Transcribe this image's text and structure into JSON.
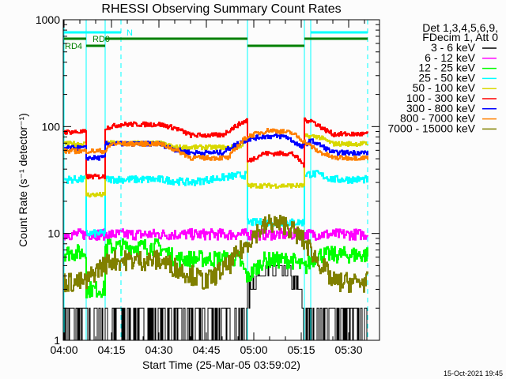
{
  "chart_data": {
    "type": "line",
    "title": "RHESSI Observing Summary Count Rates",
    "xlabel": "Start Time (25-Mar-05 03:59:02)",
    "ylabel": "Count Rate (s⁻¹ detector⁻¹)",
    "y_scale": "log",
    "ylim": [
      1,
      1000
    ],
    "xlim": [
      "03:59:45",
      "05:39:45"
    ],
    "x_ticks": [
      "04:00",
      "04:15",
      "04:30",
      "04:45",
      "05:00",
      "05:15",
      "05:30"
    ],
    "y_ticks": [
      "1",
      "10",
      "100",
      "1000"
    ],
    "legend_header": [
      "Det 1,3,4,5,6,9,",
      "FDecim 1, Att 0"
    ],
    "legend_position": "right",
    "timestamp": "15-Oct-2021 19:45",
    "series": [
      {
        "name": "3 - 6 keV",
        "color": "#000000",
        "points": [
          [
            "04:00",
            1.5
          ],
          [
            "04:07",
            1.5
          ],
          [
            "04:13",
            1.5
          ],
          [
            "04:30",
            1.5
          ],
          [
            "04:45",
            1.5
          ],
          [
            "04:57",
            1.5
          ],
          [
            "04:58",
            3
          ],
          [
            "05:02",
            4.5
          ],
          [
            "05:10",
            4.5
          ],
          [
            "05:14",
            3
          ],
          [
            "05:16",
            1.5
          ],
          [
            "05:36",
            1.5
          ]
        ]
      },
      {
        "name": "6 - 12 keV",
        "color": "#ff00ff",
        "points": [
          [
            "04:00",
            9.8
          ],
          [
            "04:30",
            9.8
          ],
          [
            "05:00",
            9.8
          ],
          [
            "05:36",
            9.8
          ]
        ]
      },
      {
        "name": "12 - 25 keV",
        "color": "#00ff00",
        "points": [
          [
            "04:00",
            6.6
          ],
          [
            "04:07",
            6.6
          ],
          [
            "04:07",
            3
          ],
          [
            "04:13",
            3
          ],
          [
            "04:13",
            7.5
          ],
          [
            "04:30",
            7.5
          ],
          [
            "04:35",
            5.8
          ],
          [
            "04:55",
            5.8
          ],
          [
            "04:58",
            3.8
          ],
          [
            "05:03",
            5.6
          ],
          [
            "05:12",
            5.6
          ],
          [
            "05:16",
            4.7
          ],
          [
            "05:20",
            6.3
          ],
          [
            "05:36",
            6.3
          ]
        ]
      },
      {
        "name": "25 - 50 keV",
        "color": "#00ffff",
        "points": [
          [
            "04:00",
            32
          ],
          [
            "04:07",
            32
          ],
          [
            "04:07",
            10
          ],
          [
            "04:13",
            10
          ],
          [
            "04:13",
            32
          ],
          [
            "04:30",
            32
          ],
          [
            "04:40",
            30
          ],
          [
            "04:55",
            35
          ],
          [
            "04:58",
            35
          ],
          [
            "04:58",
            12.7
          ],
          [
            "05:16",
            12.7
          ],
          [
            "05:16",
            36
          ],
          [
            "05:20",
            36
          ],
          [
            "05:25",
            32
          ],
          [
            "05:36",
            32
          ]
        ]
      },
      {
        "name": "50 - 100 keV",
        "color": "#d8d800",
        "points": [
          [
            "04:00",
            69
          ],
          [
            "04:07",
            69
          ],
          [
            "04:07",
            23
          ],
          [
            "04:13",
            23
          ],
          [
            "04:13",
            70
          ],
          [
            "04:30",
            70
          ],
          [
            "04:35",
            64
          ],
          [
            "04:55",
            64
          ],
          [
            "04:58",
            74
          ],
          [
            "04:58",
            28
          ],
          [
            "05:16",
            28
          ],
          [
            "05:16",
            81
          ],
          [
            "05:20",
            81
          ],
          [
            "05:25",
            69
          ],
          [
            "05:36",
            69
          ]
        ]
      },
      {
        "name": "100 - 300 keV",
        "color": "#ff0000",
        "points": [
          [
            "04:00",
            89
          ],
          [
            "04:07",
            89
          ],
          [
            "04:07",
            34
          ],
          [
            "04:13",
            34
          ],
          [
            "04:13",
            97
          ],
          [
            "04:18",
            105
          ],
          [
            "04:30",
            105
          ],
          [
            "04:35",
            97
          ],
          [
            "04:40",
            83
          ],
          [
            "04:50",
            83
          ],
          [
            "04:53",
            96
          ],
          [
            "04:58",
            116
          ],
          [
            "04:58",
            47
          ],
          [
            "05:03",
            56
          ],
          [
            "05:12",
            56
          ],
          [
            "05:16",
            43
          ],
          [
            "05:16",
            114
          ],
          [
            "05:18",
            114
          ],
          [
            "05:22",
            95
          ],
          [
            "05:25",
            85
          ],
          [
            "05:36",
            85
          ]
        ]
      },
      {
        "name": "300 - 800 keV",
        "color": "#0000ff",
        "points": [
          [
            "04:00",
            63
          ],
          [
            "04:07",
            63
          ],
          [
            "04:07",
            51
          ],
          [
            "04:13",
            51
          ],
          [
            "04:13",
            69
          ],
          [
            "04:30",
            69
          ],
          [
            "04:35",
            61
          ],
          [
            "04:40",
            57
          ],
          [
            "04:50",
            57
          ],
          [
            "04:55",
            70
          ],
          [
            "04:58",
            76
          ],
          [
            "05:03",
            81
          ],
          [
            "05:10",
            81
          ],
          [
            "05:15",
            64
          ],
          [
            "05:18",
            74
          ],
          [
            "05:25",
            57
          ],
          [
            "05:36",
            57
          ]
        ]
      },
      {
        "name": "800 - 7000 keV",
        "color": "#ff8000",
        "points": [
          [
            "04:00",
            59
          ],
          [
            "04:13",
            59
          ],
          [
            "04:15",
            69
          ],
          [
            "04:30",
            69
          ],
          [
            "04:35",
            61
          ],
          [
            "04:40",
            51
          ],
          [
            "04:52",
            51
          ],
          [
            "04:55",
            67
          ],
          [
            "04:58",
            81
          ],
          [
            "05:05",
            93
          ],
          [
            "05:12",
            87
          ],
          [
            "05:16",
            72
          ],
          [
            "05:20",
            59
          ],
          [
            "05:25",
            51
          ],
          [
            "05:36",
            51
          ]
        ]
      },
      {
        "name": "7000 - 15000 keV",
        "color": "#808000",
        "points": [
          [
            "04:00",
            3.5
          ],
          [
            "04:07",
            3.5
          ],
          [
            "04:10",
            4.5
          ],
          [
            "04:15",
            5.6
          ],
          [
            "04:30",
            5.6
          ],
          [
            "04:37",
            4.5
          ],
          [
            "04:45",
            3.5
          ],
          [
            "04:52",
            5
          ],
          [
            "04:57",
            7.5
          ],
          [
            "05:00",
            9.8
          ],
          [
            "05:05",
            12.5
          ],
          [
            "05:10",
            12
          ],
          [
            "05:15",
            8.9
          ],
          [
            "05:20",
            5.6
          ],
          [
            "05:25",
            3.5
          ],
          [
            "05:36",
            3.5
          ]
        ]
      }
    ],
    "vertical_markers": [
      {
        "time": "04:00",
        "style": "solid",
        "color": "#00ffff"
      },
      {
        "time": "04:07",
        "style": "solid",
        "color": "#00ffff"
      },
      {
        "time": "04:13",
        "style": "solid",
        "color": "#00ffff"
      },
      {
        "time": "04:18",
        "style": "dashed",
        "color": "#00ffff"
      },
      {
        "time": "04:58",
        "style": "solid",
        "color": "#00ffff"
      },
      {
        "time": "05:16",
        "style": "solid",
        "color": "#00ffff"
      },
      {
        "time": "05:18",
        "style": "solid",
        "color": "#00ffff"
      },
      {
        "time": "05:36",
        "style": "dashed",
        "color": "#00ffff"
      }
    ],
    "flag_bars": [
      {
        "label": "N",
        "color": "#00ffff",
        "row": 0,
        "intervals": [
          [
            "04:00",
            "04:18"
          ],
          [
            "05:18",
            "05:36"
          ]
        ]
      },
      {
        "label": "RD0",
        "color": "#008000",
        "row": 1,
        "intervals": [
          [
            "04:00",
            "04:07"
          ],
          [
            "04:13",
            "04:58"
          ],
          [
            "05:16",
            "05:36"
          ]
        ]
      },
      {
        "label": "RD4",
        "color": "#008000",
        "row": 2,
        "intervals": [
          [
            "04:07",
            "04:13"
          ],
          [
            "04:58",
            "05:16"
          ]
        ]
      }
    ]
  }
}
